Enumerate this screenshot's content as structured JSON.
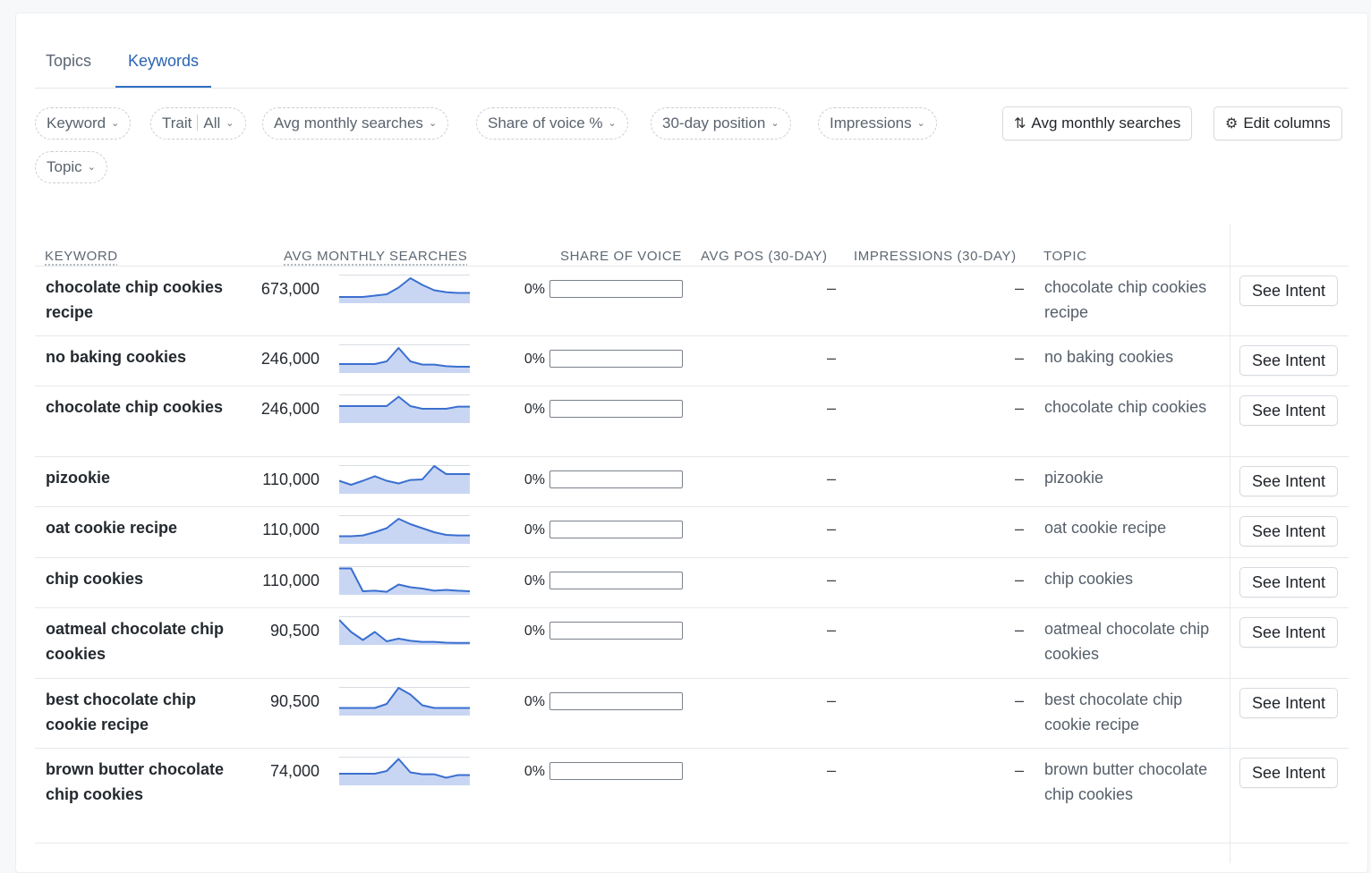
{
  "tabs": [
    {
      "label": "Topics",
      "active": false
    },
    {
      "label": "Keywords",
      "active": true
    }
  ],
  "filters": {
    "keyword": "Keyword",
    "trait": "Trait",
    "trait_value": "All",
    "avg_monthly_searches": "Avg monthly searches",
    "share_of_voice": "Share of voice %",
    "position": "30-day position",
    "impressions": "Impressions",
    "topic": "Topic"
  },
  "toolbar": {
    "sort_label": "Avg monthly searches",
    "edit_columns_label": "Edit columns"
  },
  "columns": {
    "keyword": "KEYWORD",
    "avg_monthly_searches": "AVG MONTHLY SEARCHES",
    "share_of_voice": "SHARE OF VOICE",
    "avg_pos": "AVG POS (30-DAY)",
    "impressions": "IMPRESSIONS (30-DAY)",
    "topic": "TOPIC"
  },
  "colors": {
    "accent": "#2f6fc3",
    "spark_line": "#3a6fd0",
    "spark_fill": "#c9d6f3"
  },
  "rows": [
    {
      "keyword": "chocolate chip cookies recipe",
      "volume": "673,000",
      "sov": "0%",
      "sov_value": 0,
      "avg_pos": "–",
      "impressions": "–",
      "topic": "chocolate chip cookies recipe",
      "action": "See Intent",
      "trend": [
        0.8,
        0.8,
        0.8,
        0.75,
        0.7,
        0.45,
        0.1,
        0.35,
        0.55,
        0.62,
        0.65,
        0.65
      ]
    },
    {
      "keyword": "no baking cookies",
      "volume": "246,000",
      "sov": "0%",
      "sov_value": 0,
      "avg_pos": "–",
      "impressions": "–",
      "topic": "no baking cookies",
      "action": "See Intent",
      "trend": [
        0.7,
        0.7,
        0.7,
        0.7,
        0.6,
        0.1,
        0.6,
        0.72,
        0.72,
        0.78,
        0.8,
        0.8
      ]
    },
    {
      "keyword": "chocolate chip cookies",
      "volume": "246,000",
      "sov": "0%",
      "sov_value": 0,
      "avg_pos": "–",
      "impressions": "–",
      "topic": "chocolate chip cookies",
      "action": "See Intent",
      "trend": [
        0.4,
        0.4,
        0.4,
        0.4,
        0.4,
        0.05,
        0.4,
        0.5,
        0.5,
        0.5,
        0.42,
        0.42
      ]
    },
    {
      "keyword": "pizookie",
      "volume": "110,000",
      "sov": "0%",
      "sov_value": 0,
      "avg_pos": "–",
      "impressions": "–",
      "topic": "pizookie",
      "action": "See Intent",
      "trend": [
        0.55,
        0.7,
        0.55,
        0.38,
        0.55,
        0.65,
        0.52,
        0.5,
        0.0,
        0.3,
        0.3,
        0.3
      ]
    },
    {
      "keyword": "oat cookie recipe",
      "volume": "110,000",
      "sov": "0%",
      "sov_value": 0,
      "avg_pos": "–",
      "impressions": "–",
      "topic": "oat cookie recipe",
      "action": "See Intent",
      "trend": [
        0.75,
        0.75,
        0.72,
        0.6,
        0.45,
        0.1,
        0.3,
        0.45,
        0.6,
        0.7,
        0.72,
        0.72
      ]
    },
    {
      "keyword": "chip cookies",
      "volume": "110,000",
      "sov": "0%",
      "sov_value": 0,
      "avg_pos": "–",
      "impressions": "–",
      "topic": "chip cookies",
      "action": "See Intent",
      "trend": [
        0.05,
        0.05,
        0.9,
        0.88,
        0.92,
        0.65,
        0.75,
        0.8,
        0.88,
        0.85,
        0.88,
        0.9
      ]
    },
    {
      "keyword": "oatmeal chocolate chip cookies",
      "volume": "90,500",
      "sov": "0%",
      "sov_value": 0,
      "avg_pos": "–",
      "impressions": "–",
      "topic": "oatmeal chocolate chip cookies",
      "action": "See Intent",
      "trend": [
        0.1,
        0.55,
        0.85,
        0.55,
        0.9,
        0.8,
        0.88,
        0.92,
        0.92,
        0.95,
        0.96,
        0.96
      ]
    },
    {
      "keyword": "best chocolate chip cookie recipe",
      "volume": "90,500",
      "sov": "0%",
      "sov_value": 0,
      "avg_pos": "–",
      "impressions": "–",
      "topic": "best chocolate chip cookie recipe",
      "action": "See Intent",
      "trend": [
        0.75,
        0.75,
        0.75,
        0.75,
        0.6,
        0.0,
        0.25,
        0.65,
        0.75,
        0.75,
        0.75,
        0.75
      ]
    },
    {
      "keyword": "brown butter chocolate chip cookies",
      "volume": "74,000",
      "sov": "0%",
      "sov_value": 0,
      "avg_pos": "–",
      "impressions": "–",
      "topic": "brown butter chocolate chip cookies",
      "action": "See Intent",
      "trend": [
        0.6,
        0.6,
        0.6,
        0.6,
        0.5,
        0.05,
        0.55,
        0.62,
        0.62,
        0.75,
        0.65,
        0.65
      ]
    }
  ]
}
